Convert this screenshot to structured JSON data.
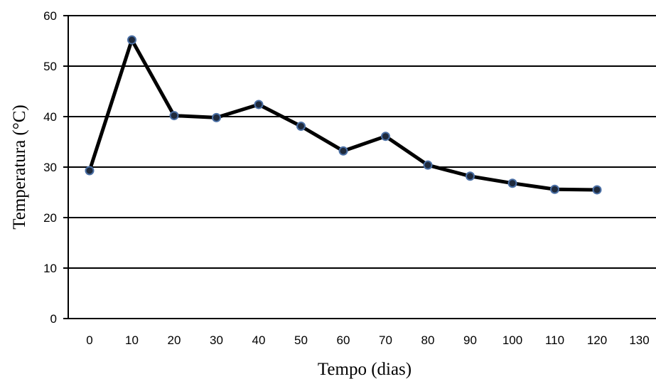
{
  "chart_data": {
    "type": "line",
    "title": "",
    "xlabel": "Tempo (dias)",
    "ylabel": "Temperatura (°C)",
    "xlim": [
      0,
      130
    ],
    "ylim": [
      0,
      60
    ],
    "x_ticks": [
      0,
      10,
      20,
      30,
      40,
      50,
      60,
      70,
      80,
      90,
      100,
      110,
      120,
      130
    ],
    "y_ticks": [
      0,
      10,
      20,
      30,
      40,
      50,
      60
    ],
    "grid": "horizontal",
    "legend": "none",
    "series": [
      {
        "x": [
          0,
          10,
          20,
          30,
          40,
          50,
          60,
          70,
          80,
          90,
          100,
          110,
          120
        ],
        "values": [
          29.3,
          55.2,
          40.2,
          39.8,
          42.4,
          38.1,
          33.2,
          36.1,
          30.4,
          28.2,
          26.8,
          25.6,
          25.5
        ],
        "line_color": "#000000",
        "marker_color": "#1f2a3c",
        "marker_edge": "#4a6fa5"
      }
    ]
  }
}
